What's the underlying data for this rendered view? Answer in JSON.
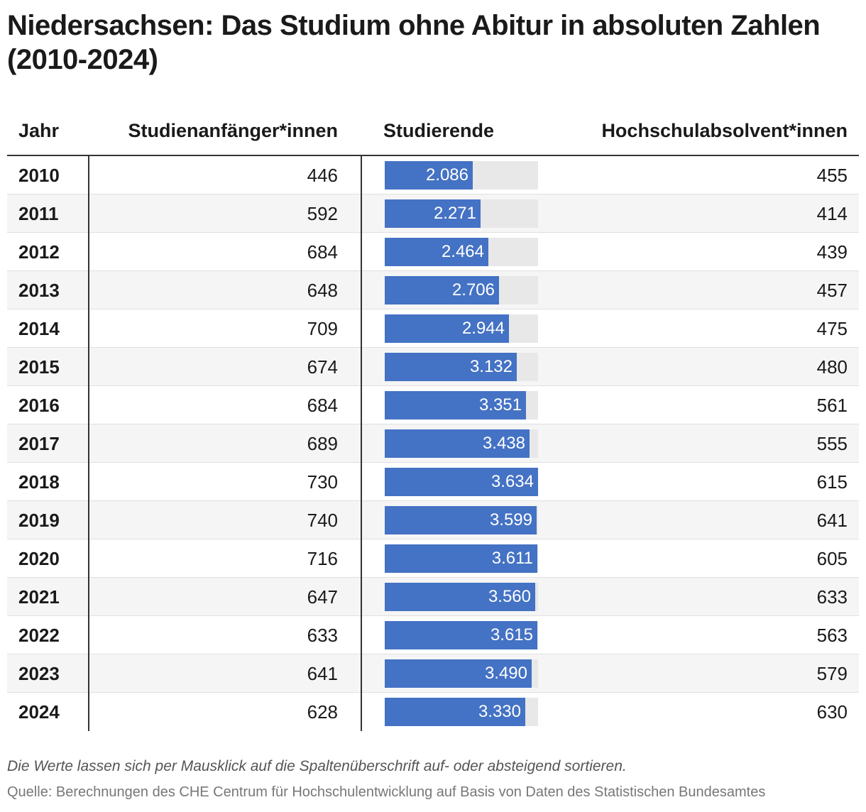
{
  "title": "Niedersachsen: Das Studium ohne Abitur in absoluten Zahlen (2010-2024)",
  "columns": {
    "year": "Jahr",
    "anfaenger": "Studienanfänger*innen",
    "studierende": "Studierende",
    "absolventen": "Hochschulabsolvent*innen"
  },
  "colors": {
    "bar": "#4472c4",
    "track": "#e8e8e8",
    "row_alt": "#f5f5f5"
  },
  "chart_data": {
    "type": "table",
    "title": "Niedersachsen: Das Studium ohne Abitur in absoluten Zahlen (2010-2024)",
    "bar_column": "studierende",
    "bar_max": 3634,
    "rows": [
      {
        "year": "2010",
        "anfaenger": "446",
        "studierende": 2086,
        "studierende_label": "2.086",
        "absolventen": "455"
      },
      {
        "year": "2011",
        "anfaenger": "592",
        "studierende": 2271,
        "studierende_label": "2.271",
        "absolventen": "414"
      },
      {
        "year": "2012",
        "anfaenger": "684",
        "studierende": 2464,
        "studierende_label": "2.464",
        "absolventen": "439"
      },
      {
        "year": "2013",
        "anfaenger": "648",
        "studierende": 2706,
        "studierende_label": "2.706",
        "absolventen": "457"
      },
      {
        "year": "2014",
        "anfaenger": "709",
        "studierende": 2944,
        "studierende_label": "2.944",
        "absolventen": "475"
      },
      {
        "year": "2015",
        "anfaenger": "674",
        "studierende": 3132,
        "studierende_label": "3.132",
        "absolventen": "480"
      },
      {
        "year": "2016",
        "anfaenger": "684",
        "studierende": 3351,
        "studierende_label": "3.351",
        "absolventen": "561"
      },
      {
        "year": "2017",
        "anfaenger": "689",
        "studierende": 3438,
        "studierende_label": "3.438",
        "absolventen": "555"
      },
      {
        "year": "2018",
        "anfaenger": "730",
        "studierende": 3634,
        "studierende_label": "3.634",
        "absolventen": "615"
      },
      {
        "year": "2019",
        "anfaenger": "740",
        "studierende": 3599,
        "studierende_label": "3.599",
        "absolventen": "641"
      },
      {
        "year": "2020",
        "anfaenger": "716",
        "studierende": 3611,
        "studierende_label": "3.611",
        "absolventen": "605"
      },
      {
        "year": "2021",
        "anfaenger": "647",
        "studierende": 3560,
        "studierende_label": "3.560",
        "absolventen": "633"
      },
      {
        "year": "2022",
        "anfaenger": "633",
        "studierende": 3615,
        "studierende_label": "3.615",
        "absolventen": "563"
      },
      {
        "year": "2023",
        "anfaenger": "641",
        "studierende": 3490,
        "studierende_label": "3.490",
        "absolventen": "579"
      },
      {
        "year": "2024",
        "anfaenger": "628",
        "studierende": 3330,
        "studierende_label": "3.330",
        "absolventen": "630"
      }
    ]
  },
  "note": "Die Werte lassen sich per Mausklick auf die Spaltenüberschrift auf- oder absteigend sortieren.",
  "source": "Quelle: Berechnungen des CHE Centrum für Hochschulentwicklung auf Basis von Daten des Statistischen Bundesamtes"
}
